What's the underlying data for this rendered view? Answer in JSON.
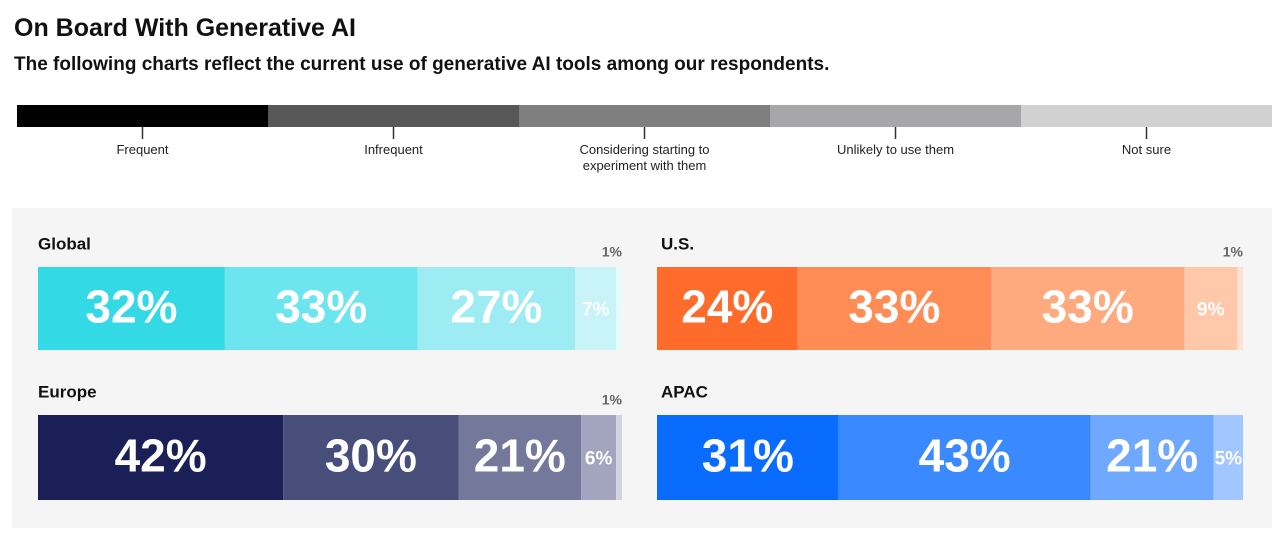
{
  "title": "On Board With Generative AI",
  "subtitle": "The following charts reflect the current use of generative AI tools among our respondents.",
  "legend": {
    "labels": [
      "Frequent",
      "Infrequent",
      "Considering starting to experiment with them",
      "Unlikely to use them",
      "Not sure"
    ],
    "colors": [
      "#000000",
      "#575757",
      "#7f7f80",
      "#a7a7a9",
      "#d1d1d2"
    ]
  },
  "chart_data": [
    {
      "type": "stacked-bar",
      "title": "Global",
      "values": [
        32,
        33,
        27,
        7,
        1
      ],
      "value_labels": [
        "32%",
        "33%",
        "27%",
        "7%",
        "1%"
      ],
      "xlim": [
        0,
        100
      ],
      "colors": [
        "#34d9e6",
        "#6de5ee",
        "#9debf3",
        "#c8f4f8",
        "#e6f9fb"
      ]
    },
    {
      "type": "stacked-bar",
      "title": "U.S.",
      "values": [
        24,
        33,
        33,
        9,
        1
      ],
      "value_labels": [
        "24%",
        "33%",
        "33%",
        "9%",
        "1%"
      ],
      "xlim": [
        0,
        100
      ],
      "colors": [
        "#ff6b2b",
        "#ff8c55",
        "#ffa97e",
        "#ffc8ab",
        "#ffe2d4"
      ]
    },
    {
      "type": "stacked-bar",
      "title": "Europe",
      "values": [
        42,
        30,
        21,
        6,
        1
      ],
      "value_labels": [
        "42%",
        "30%",
        "21%",
        "6%",
        "1%"
      ],
      "xlim": [
        0,
        100
      ],
      "colors": [
        "#1a2057",
        "#474e7a",
        "#74789b",
        "#a2a5bd",
        "#d2d3de"
      ]
    },
    {
      "type": "stacked-bar",
      "title": "APAC",
      "values": [
        31,
        43,
        21,
        5
      ],
      "value_labels": [
        "31%",
        "43%",
        "21%",
        "5%"
      ],
      "xlim": [
        0,
        100
      ],
      "colors": [
        "#0a6cff",
        "#3a89ff",
        "#6fa8ff",
        "#a2c6ff"
      ]
    }
  ]
}
